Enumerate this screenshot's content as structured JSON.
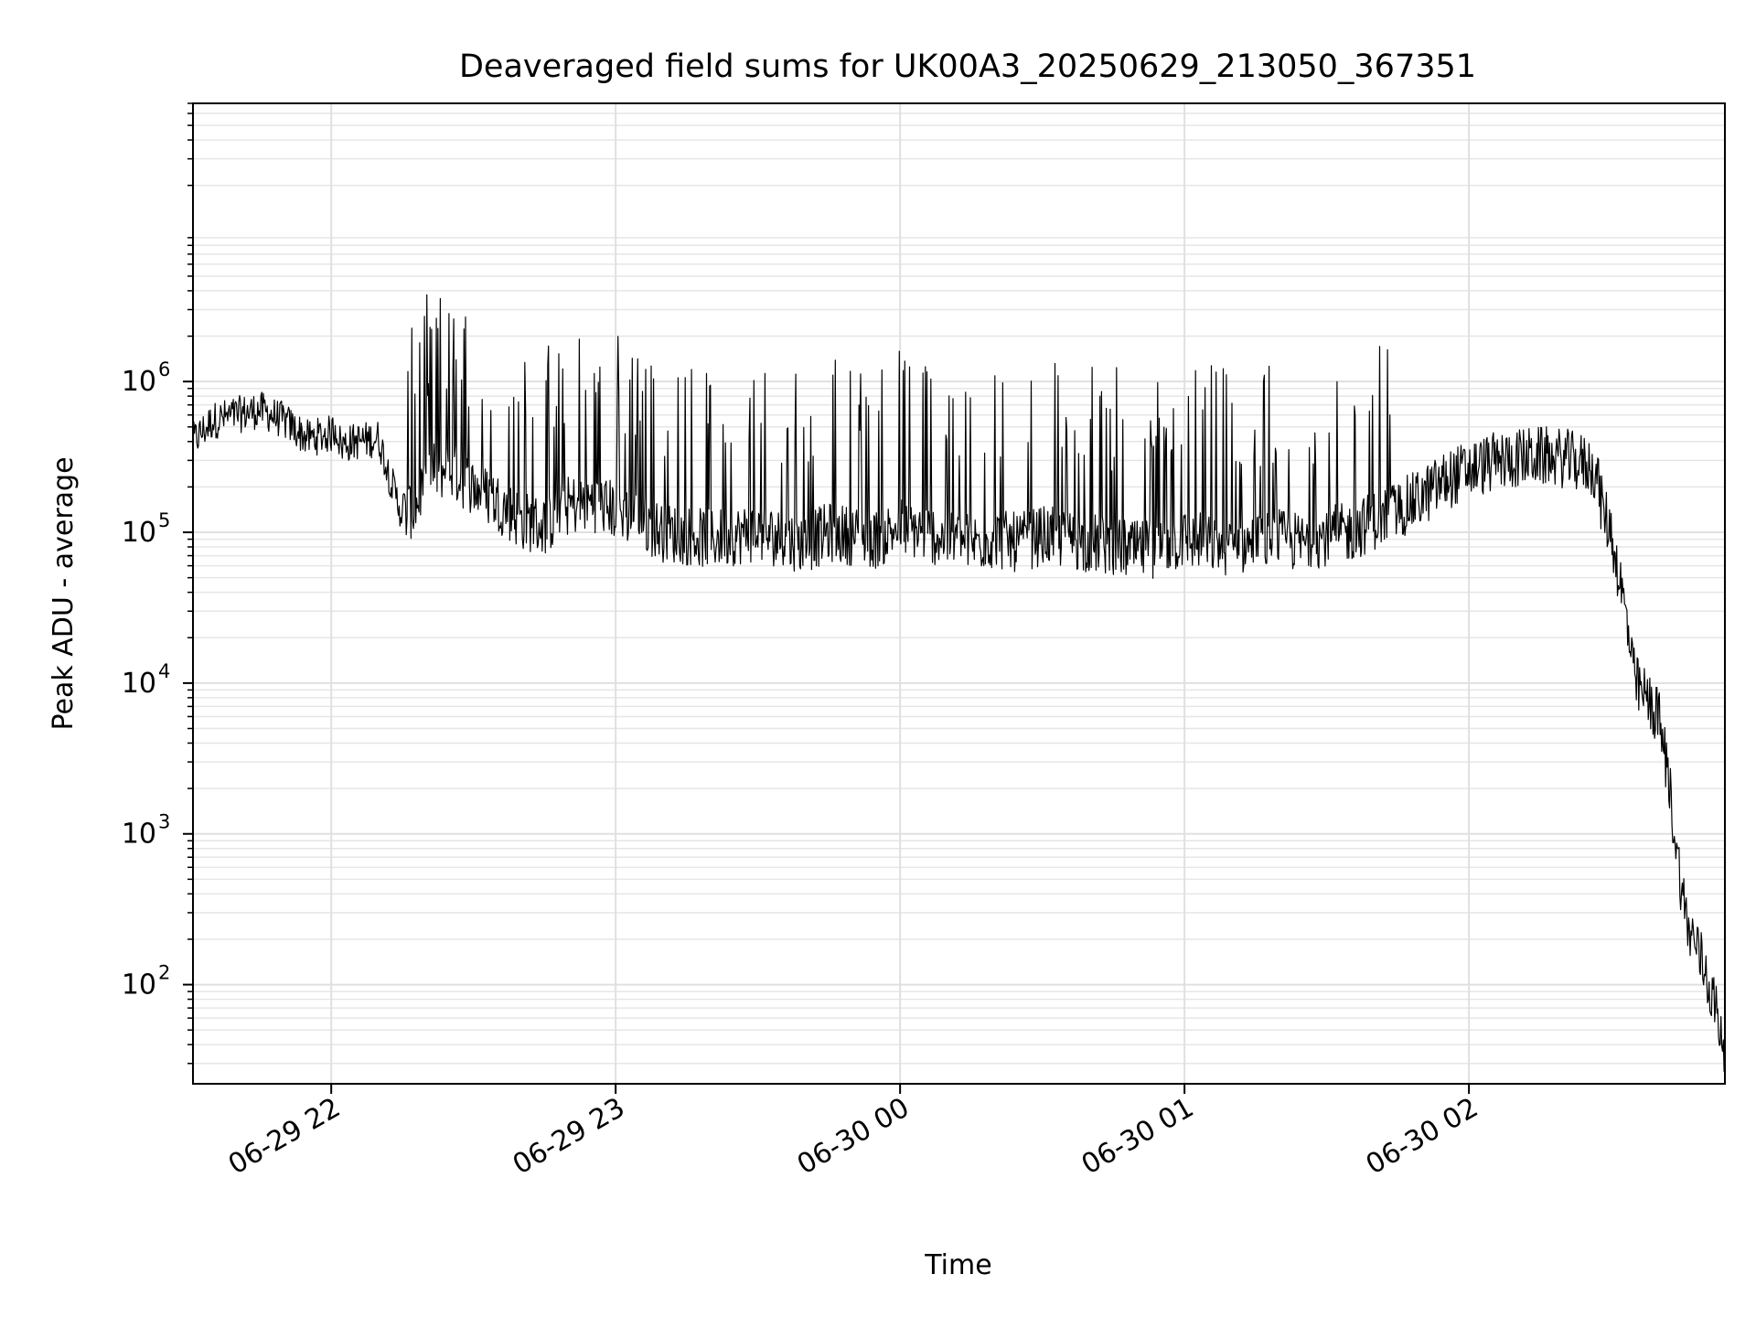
{
  "chart_data": {
    "type": "line",
    "title": "Deaveraged field sums for UK00A3_20250629_213050_367351",
    "xlabel": "Time",
    "ylabel": "Peak ADU - average",
    "yscale": "log",
    "ylim": [
      22,
      70000000
    ],
    "xlim": [
      "2025-06-29 21:30:50",
      "2025-06-30 02:54:00"
    ],
    "grid": true,
    "legend": "none",
    "line_color": "#000000",
    "x_ticks": [
      {
        "x": "2025-06-29 22:00",
        "label": "06-29 22"
      },
      {
        "x": "2025-06-29 23:00",
        "label": "06-29 23"
      },
      {
        "x": "2025-06-30 00:00",
        "label": "06-30 00"
      },
      {
        "x": "2025-06-30 01:00",
        "label": "06-30 01"
      },
      {
        "x": "2025-06-30 02:00",
        "label": "06-30 02"
      }
    ],
    "y_ticks": [
      {
        "exp": 2,
        "base": "10",
        "sup": "2"
      },
      {
        "exp": 3,
        "base": "10",
        "sup": "3"
      },
      {
        "exp": 4,
        "base": "10",
        "sup": "4"
      },
      {
        "exp": 5,
        "base": "10",
        "sup": "5"
      },
      {
        "exp": 6,
        "base": "10",
        "sup": "6"
      }
    ],
    "series": [
      {
        "x": [
          "2025-06-29 21:30:50",
          "2025-06-29 21:35",
          "2025-06-29 21:40",
          "2025-06-29 21:45",
          "2025-06-29 21:50",
          "2025-06-29 21:55",
          "2025-06-29 22:00",
          "2025-06-29 22:01",
          "2025-06-29 22:02",
          "2025-06-29 22:05",
          "2025-06-29 22:10",
          "2025-06-29 22:13",
          "2025-06-29 22:15",
          "2025-06-29 22:18",
          "2025-06-29 22:20",
          "2025-06-29 22:25",
          "2025-06-29 22:30",
          "2025-06-29 22:35",
          "2025-06-29 22:40",
          "2025-06-29 22:45",
          "2025-06-29 22:50",
          "2025-06-29 22:55",
          "2025-06-29 23:00",
          "2025-06-29 23:05",
          "2025-06-29 23:10",
          "2025-06-29 23:15",
          "2025-06-29 23:20",
          "2025-06-29 23:25",
          "2025-06-29 23:30",
          "2025-06-29 23:35",
          "2025-06-29 23:40",
          "2025-06-29 23:45",
          "2025-06-29 23:50",
          "2025-06-29 23:55",
          "2025-06-30 00:00",
          "2025-06-30 00:05",
          "2025-06-30 00:10",
          "2025-06-30 00:15",
          "2025-06-30 00:20",
          "2025-06-30 00:25",
          "2025-06-30 00:30",
          "2025-06-30 00:35",
          "2025-06-30 00:40",
          "2025-06-30 00:45",
          "2025-06-30 00:50",
          "2025-06-30 00:55",
          "2025-06-30 01:00",
          "2025-06-30 01:05",
          "2025-06-30 01:10",
          "2025-06-30 01:15",
          "2025-06-30 01:20",
          "2025-06-30 01:25",
          "2025-06-30 01:30",
          "2025-06-30 01:35",
          "2025-06-30 01:40",
          "2025-06-30 01:45",
          "2025-06-30 01:50",
          "2025-06-30 01:55",
          "2025-06-30 02:00",
          "2025-06-30 02:05",
          "2025-06-30 02:10",
          "2025-06-30 02:15",
          "2025-06-30 02:20",
          "2025-06-30 02:25",
          "2025-06-30 02:27",
          "2025-06-30 02:28",
          "2025-06-30 02:30",
          "2025-06-30 02:33",
          "2025-06-30 02:35",
          "2025-06-30 02:38",
          "2025-06-30 02:40",
          "2025-06-30 02:42",
          "2025-06-30 02:44",
          "2025-06-30 02:46",
          "2025-06-30 02:48",
          "2025-06-30 02:50",
          "2025-06-30 02:52",
          "2025-06-30 02:54"
        ],
        "y": [
          400000,
          550000,
          600000,
          650000,
          550000,
          420000,
          450000,
          500000,
          380000,
          400000,
          420000,
          200000,
          130000,
          150000,
          250000,
          260000,
          200000,
          160000,
          120000,
          110000,
          150000,
          160000,
          140000,
          120000,
          100000,
          95000,
          90000,
          95000,
          100000,
          90000,
          85000,
          100000,
          95000,
          90000,
          110000,
          100000,
          90000,
          85000,
          90000,
          85000,
          95000,
          90000,
          85000,
          80000,
          75000,
          80000,
          90000,
          85000,
          80000,
          85000,
          90000,
          85000,
          95000,
          100000,
          120000,
          140000,
          170000,
          220000,
          260000,
          290000,
          310000,
          320000,
          310000,
          280000,
          250000,
          150000,
          100000,
          30000,
          10000,
          7500,
          6000,
          2500,
          700,
          250,
          180,
          120,
          70,
          40
        ]
      }
    ]
  }
}
